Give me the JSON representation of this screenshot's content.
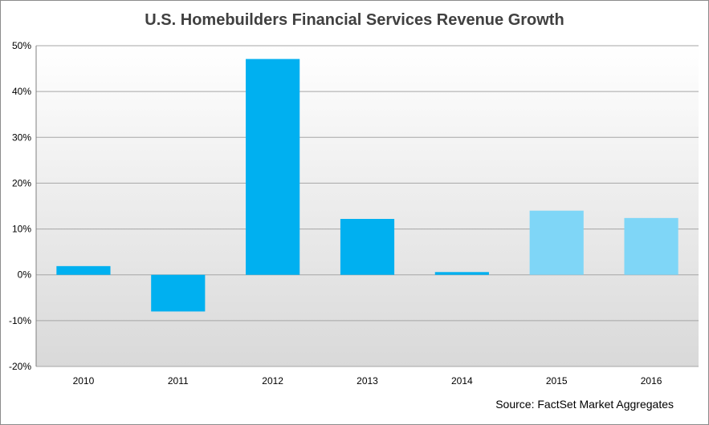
{
  "chart_data": {
    "type": "bar",
    "title": "U.S. Homebuilders Financial Services Revenue Growth",
    "xlabel": "",
    "ylabel": "",
    "categories": [
      "2010",
      "2011",
      "2012",
      "2013",
      "2014",
      "2015",
      "2016"
    ],
    "values": [
      1.9,
      -8.0,
      47.1,
      12.2,
      0.6,
      14.0,
      12.4
    ],
    "bar_colors": [
      "#00b0f0",
      "#00b0f0",
      "#00b0f0",
      "#00b0f0",
      "#00b0f0",
      "#7fd6f7",
      "#7fd6f7"
    ],
    "ylim": [
      -20,
      50
    ],
    "ytick_labels": [
      "-20%",
      "-10%",
      "0%",
      "10%",
      "20%",
      "30%",
      "40%",
      "50%"
    ],
    "ytick_values": [
      -20,
      -10,
      0,
      10,
      20,
      30,
      40,
      50
    ],
    "grid": true,
    "legend": "none",
    "source": "Source: FactSet Market Aggregates"
  }
}
